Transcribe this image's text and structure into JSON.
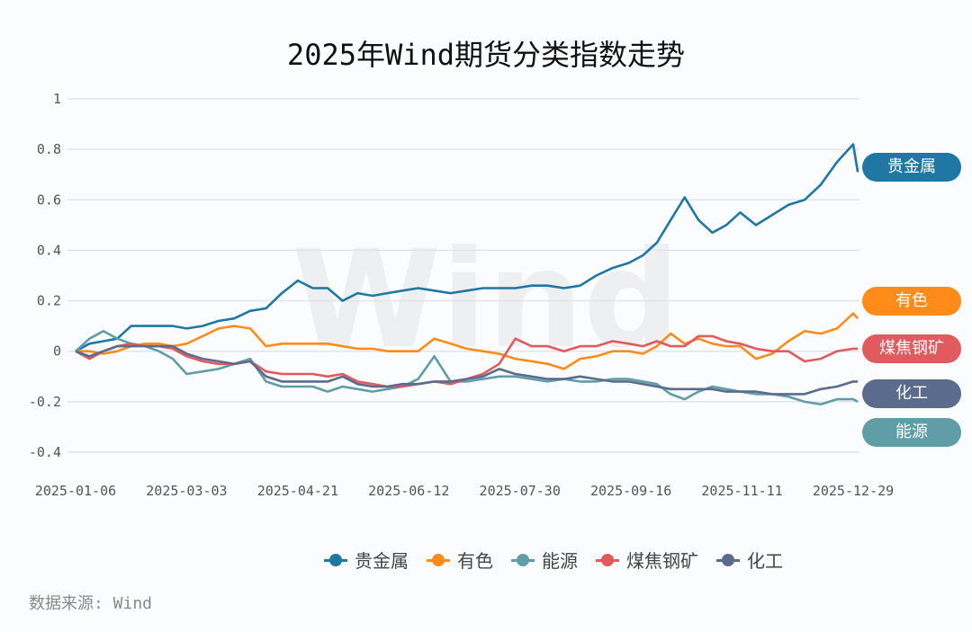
{
  "chart_data": {
    "type": "line",
    "title": "2025年Wind期货分类指数走势",
    "source": "数据来源: Wind",
    "watermark": "Wind",
    "xlabel": "",
    "ylabel": "",
    "ylim": [
      -0.4,
      1
    ],
    "yticks": [
      "1",
      "0.8",
      "0.6",
      "0.4",
      "0.2",
      "0",
      "-0.2",
      "-0.4"
    ],
    "xticks": [
      "2025-01-06",
      "2025-03-03",
      "2025-04-21",
      "2025-06-12",
      "2025-07-30",
      "2025-09-16",
      "2025-11-11",
      "2025-12-29"
    ],
    "grid": true,
    "legend_position": "bottom",
    "x": [
      "2025-01-06",
      "2025-01-13",
      "2025-01-20",
      "2025-01-27",
      "2025-02-03",
      "2025-02-10",
      "2025-02-17",
      "2025-02-24",
      "2025-03-03",
      "2025-03-10",
      "2025-03-17",
      "2025-03-24",
      "2025-03-31",
      "2025-04-07",
      "2025-04-14",
      "2025-04-21",
      "2025-04-28",
      "2025-05-05",
      "2025-05-12",
      "2025-05-19",
      "2025-05-26",
      "2025-06-02",
      "2025-06-09",
      "2025-06-16",
      "2025-06-23",
      "2025-06-30",
      "2025-07-07",
      "2025-07-14",
      "2025-07-21",
      "2025-07-28",
      "2025-08-04",
      "2025-08-11",
      "2025-08-18",
      "2025-08-25",
      "2025-09-01",
      "2025-09-08",
      "2025-09-15",
      "2025-09-22",
      "2025-09-29",
      "2025-10-06",
      "2025-10-13",
      "2025-10-20",
      "2025-10-27",
      "2025-11-03",
      "2025-11-10",
      "2025-11-17",
      "2025-11-24",
      "2025-12-01",
      "2025-12-08",
      "2025-12-15",
      "2025-12-22",
      "2025-12-29",
      "2025-12-31"
    ],
    "series": [
      {
        "name": "贵金属",
        "color": "#1f77a4",
        "values": [
          0,
          0.03,
          0.04,
          0.05,
          0.1,
          0.1,
          0.1,
          0.1,
          0.09,
          0.1,
          0.12,
          0.13,
          0.16,
          0.17,
          0.23,
          0.28,
          0.25,
          0.25,
          0.2,
          0.23,
          0.22,
          0.23,
          0.24,
          0.25,
          0.24,
          0.23,
          0.24,
          0.25,
          0.25,
          0.25,
          0.26,
          0.26,
          0.25,
          0.26,
          0.3,
          0.33,
          0.35,
          0.38,
          0.43,
          0.52,
          0.61,
          0.52,
          0.47,
          0.5,
          0.55,
          0.5,
          0.54,
          0.58,
          0.6,
          0.66,
          0.75,
          0.82,
          0.71
        ]
      },
      {
        "name": "有色",
        "color": "#ff8c1a",
        "values": [
          0,
          0,
          -0.01,
          0,
          0.02,
          0.03,
          0.03,
          0.02,
          0.03,
          0.06,
          0.09,
          0.1,
          0.09,
          0.02,
          0.03,
          0.03,
          0.03,
          0.03,
          0.02,
          0.01,
          0.01,
          0,
          0,
          0,
          0.05,
          0.03,
          0.01,
          0,
          -0.01,
          -0.03,
          -0.04,
          -0.05,
          -0.07,
          -0.03,
          -0.02,
          0,
          0,
          -0.01,
          0.02,
          0.07,
          0.03,
          0.05,
          0.03,
          0.02,
          0.02,
          -0.03,
          -0.01,
          0.04,
          0.08,
          0.07,
          0.09,
          0.15,
          0.13
        ]
      },
      {
        "name": "能源",
        "color": "#5f9ea6",
        "values": [
          0,
          0.05,
          0.08,
          0.05,
          0.03,
          0.02,
          0,
          -0.03,
          -0.09,
          -0.08,
          -0.07,
          -0.05,
          -0.03,
          -0.12,
          -0.14,
          -0.14,
          -0.14,
          -0.16,
          -0.14,
          -0.15,
          -0.16,
          -0.15,
          -0.14,
          -0.11,
          -0.02,
          -0.12,
          -0.12,
          -0.11,
          -0.1,
          -0.1,
          -0.11,
          -0.12,
          -0.11,
          -0.12,
          -0.12,
          -0.11,
          -0.11,
          -0.12,
          -0.13,
          -0.17,
          -0.19,
          -0.16,
          -0.14,
          -0.15,
          -0.16,
          -0.17,
          -0.17,
          -0.18,
          -0.2,
          -0.21,
          -0.19,
          -0.19,
          -0.2
        ]
      },
      {
        "name": "煤焦钢矿",
        "color": "#e05a5e",
        "values": [
          0,
          -0.03,
          0,
          0.02,
          0.03,
          0.02,
          0.02,
          0.01,
          -0.02,
          -0.04,
          -0.05,
          -0.05,
          -0.04,
          -0.08,
          -0.09,
          -0.09,
          -0.09,
          -0.1,
          -0.09,
          -0.12,
          -0.13,
          -0.14,
          -0.14,
          -0.13,
          -0.12,
          -0.13,
          -0.11,
          -0.09,
          -0.05,
          0.05,
          0.02,
          0.02,
          0,
          0.02,
          0.02,
          0.04,
          0.03,
          0.02,
          0.04,
          0.02,
          0.02,
          0.06,
          0.06,
          0.04,
          0.03,
          0.01,
          0,
          0,
          -0.04,
          -0.03,
          0,
          0.01,
          0.01
        ]
      },
      {
        "name": "化工",
        "color": "#5b6b8e",
        "values": [
          0,
          -0.02,
          0,
          0.02,
          0.02,
          0.02,
          0.02,
          0.02,
          -0.01,
          -0.03,
          -0.04,
          -0.05,
          -0.04,
          -0.1,
          -0.12,
          -0.12,
          -0.12,
          -0.12,
          -0.1,
          -0.13,
          -0.14,
          -0.14,
          -0.13,
          -0.13,
          -0.12,
          -0.12,
          -0.11,
          -0.1,
          -0.07,
          -0.09,
          -0.1,
          -0.11,
          -0.11,
          -0.1,
          -0.11,
          -0.12,
          -0.12,
          -0.13,
          -0.14,
          -0.15,
          -0.15,
          -0.15,
          -0.15,
          -0.16,
          -0.16,
          -0.16,
          -0.17,
          -0.17,
          -0.17,
          -0.15,
          -0.14,
          -0.12,
          -0.12
        ]
      }
    ],
    "end_labels": [
      "贵金属",
      "有色",
      "煤焦钢矿",
      "化工",
      "能源"
    ]
  }
}
